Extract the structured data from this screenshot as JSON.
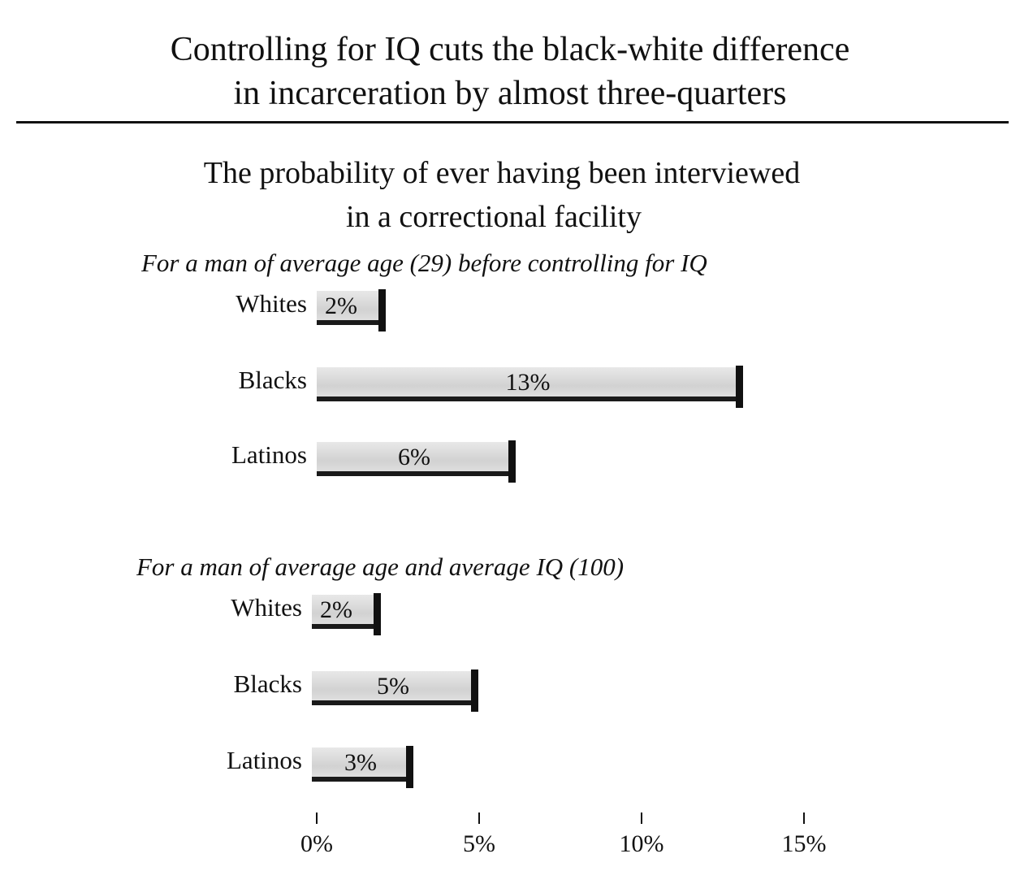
{
  "header": {
    "title_line1": "Controlling for IQ cuts the black-white difference",
    "title_line2": "in incarceration by almost three-quarters"
  },
  "chart_data": {
    "type": "bar",
    "orientation": "horizontal",
    "subtitle_line1": "The probability of ever having been interviewed",
    "subtitle_line2": "in a correctional facility",
    "xlim": [
      0,
      15
    ],
    "x_ticks": [
      "0%",
      "5%",
      "10%",
      "15%"
    ],
    "x_tick_values": [
      0,
      5,
      10,
      15
    ],
    "panels": [
      {
        "title": "For a man of average age (29) before controlling for IQ",
        "categories": [
          "Whites",
          "Blacks",
          "Latinos"
        ],
        "values": [
          2,
          13,
          6
        ],
        "labels": [
          "2%",
          "13%",
          "6%"
        ]
      },
      {
        "title": "For a man of average age and average IQ (100)",
        "categories": [
          "Whites",
          "Blacks",
          "Latinos"
        ],
        "values": [
          2,
          5,
          3
        ],
        "labels": [
          "2%",
          "5%",
          "3%"
        ]
      }
    ],
    "colors": {
      "bar": "#d6d6d6",
      "shadow": "#111111"
    }
  }
}
